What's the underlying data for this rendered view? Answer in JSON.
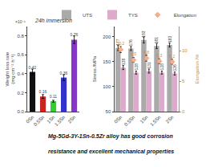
{
  "chart_data": [
    {
      "type": "bar",
      "title": "24h immersion",
      "categories": [
        "0Sn",
        "0.5Sn",
        "1Sn",
        "1.5Sn",
        "2Sn"
      ],
      "values": [
        0.42,
        0.16,
        0.11,
        0.36,
        0.76
      ],
      "errors": [
        0.03,
        0.02,
        0.01,
        0.03,
        0.04
      ],
      "colors": [
        "#111111",
        "#cc2222",
        "#33cc33",
        "#3333cc",
        "#8833cc"
      ],
      "ylabel": "Weight loss rate\n(mg cm⁻² h⁻¹)",
      "ylim": [
        0,
        0.9
      ],
      "yticks": [
        {
          "value": 0,
          "label": "0.0"
        },
        0.2,
        0.4,
        0.6,
        0.8
      ],
      "data_labels": true,
      "grid": false,
      "annotations": [
        "×10⁻¹"
      ]
    },
    {
      "type": "bar",
      "categories": [
        "0Sn",
        "0.5Sn",
        "1Sn",
        "1.5Sn",
        "2Sn"
      ],
      "series": [
        {
          "name": "UTS",
          "color": "#aaaaaa",
          "values": [
            177,
            176,
            193,
            181,
            183
          ],
          "errors": [
            5,
            4,
            6,
            5,
            4
          ]
        },
        {
          "name": "TYS",
          "color": "#ddaacc",
          "values": [
            138,
            128,
            131,
            128,
            126
          ],
          "errors": [
            4,
            3,
            4,
            3,
            3
          ]
        },
        {
          "name": "Elongation",
          "type": "scatter",
          "marker": "diamond",
          "axis": "y2",
          "color": "#ffaa88",
          "values": [
            10.2,
            8.5,
            8.8,
            8.3,
            8.2
          ],
          "errors": [
            0.5,
            0.4,
            0.5,
            0.4,
            0.4
          ]
        }
      ],
      "ylabel": "Stress /MPa",
      "y2label": "Elongation /%",
      "ylim": [
        50,
        220
      ],
      "yticks": [
        50,
        100,
        150,
        200
      ],
      "y2lim": [
        0,
        14
      ],
      "y2ticks": [
        0,
        5,
        10
      ],
      "legend": "upper right",
      "data_labels": true,
      "grid": false,
      "annotations": [
        "Mg-5Gd-3Y-1Sn-0.5Zr alloy has good corrosion",
        "resistance and excellent mechanical properties"
      ]
    }
  ]
}
